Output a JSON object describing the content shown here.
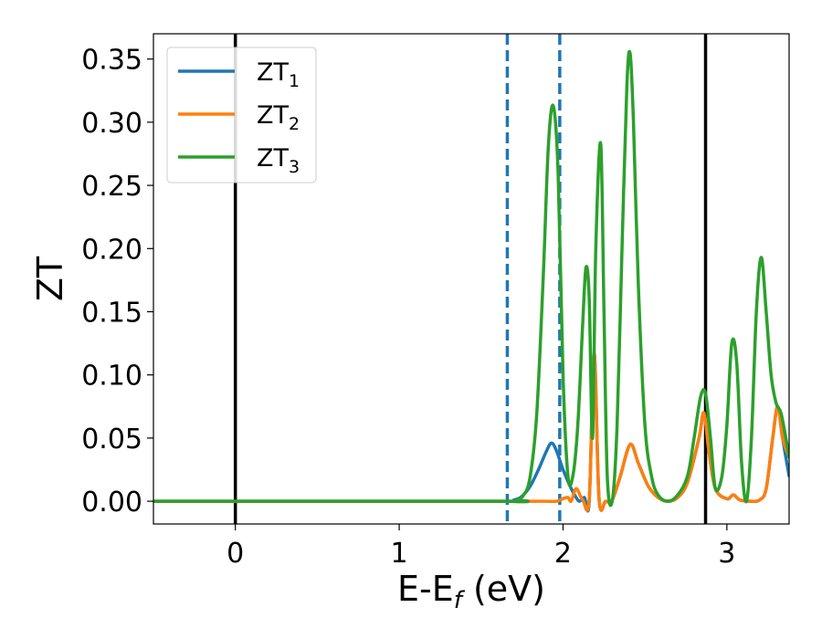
{
  "chart_data": {
    "type": "line",
    "xlabel": "E-E",
    "xlabel_sub": "f",
    "xlabel_unit": " (eV)",
    "ylabel": "ZT",
    "xlim": [
      -0.5,
      3.38
    ],
    "ylim": [
      -0.018,
      0.37
    ],
    "x_ticks": [
      {
        "value": 0,
        "label": "0"
      },
      {
        "value": 1,
        "label": "1"
      },
      {
        "value": 2,
        "label": "2"
      },
      {
        "value": 3,
        "label": "3"
      }
    ],
    "y_ticks": [
      {
        "value": 0.0,
        "label": "0.00"
      },
      {
        "value": 0.05,
        "label": "0.05"
      },
      {
        "value": 0.1,
        "label": "0.10"
      },
      {
        "value": 0.15,
        "label": "0.15"
      },
      {
        "value": 0.2,
        "label": "0.20"
      },
      {
        "value": 0.25,
        "label": "0.25"
      },
      {
        "value": 0.3,
        "label": "0.30"
      },
      {
        "value": 0.35,
        "label": "0.35"
      }
    ],
    "grid": false,
    "legend_position": "top-left",
    "vertical_lines": [
      {
        "x": 0.0,
        "style": "solid",
        "color": "#000000"
      },
      {
        "x": 1.66,
        "style": "dashed",
        "color": "#1f77b4"
      },
      {
        "x": 1.98,
        "style": "dashed",
        "color": "#1f77b4"
      },
      {
        "x": 2.87,
        "style": "solid",
        "color": "#000000"
      }
    ],
    "series": [
      {
        "name": "ZT",
        "subscript": "1",
        "color": "#1f77b4",
        "x": [
          -0.5,
          1.6,
          1.7,
          1.75,
          1.8,
          1.85,
          1.9,
          1.93,
          1.96,
          2.0,
          2.05,
          2.08,
          2.1,
          2.13,
          2.16,
          2.19,
          2.22,
          2.26,
          2.3,
          2.35,
          2.41,
          2.46,
          2.52,
          2.58,
          2.64,
          2.7,
          2.76,
          2.83,
          2.86,
          2.89,
          2.93,
          3.0,
          3.04,
          3.08,
          3.15,
          3.2,
          3.24,
          3.28,
          3.31,
          3.34,
          3.38
        ],
        "y": [
          0.0,
          0.0,
          0.001,
          0.004,
          0.012,
          0.025,
          0.04,
          0.046,
          0.04,
          0.025,
          0.01,
          0.003,
          0.0,
          0.003,
          0.0,
          0.117,
          0.002,
          0.0,
          0.001,
          0.02,
          0.045,
          0.03,
          0.012,
          0.003,
          0.0,
          0.003,
          0.015,
          0.05,
          0.07,
          0.04,
          0.01,
          0.002,
          0.005,
          0.001,
          0.0,
          0.001,
          0.01,
          0.05,
          0.075,
          0.05,
          0.02
        ]
      },
      {
        "name": "ZT",
        "subscript": "2",
        "color": "#ff7f0e",
        "x": [
          -0.5,
          1.6,
          1.7,
          1.8,
          1.9,
          1.96,
          2.0,
          2.03,
          2.05,
          2.08,
          2.12,
          2.16,
          2.19,
          2.22,
          2.26,
          2.3,
          2.35,
          2.41,
          2.46,
          2.52,
          2.58,
          2.64,
          2.7,
          2.76,
          2.83,
          2.86,
          2.89,
          2.93,
          3.0,
          3.04,
          3.08,
          3.15,
          3.2,
          3.24,
          3.28,
          3.31,
          3.34,
          3.38
        ],
        "y": [
          0.0,
          0.0,
          0.0,
          0.0,
          0.0,
          0.0,
          0.002,
          0.003,
          0.0,
          0.01,
          0.001,
          0.002,
          0.117,
          0.002,
          0.0,
          0.001,
          0.02,
          0.045,
          0.03,
          0.012,
          0.003,
          0.0,
          0.003,
          0.015,
          0.05,
          0.07,
          0.04,
          0.01,
          0.002,
          0.005,
          0.001,
          0.0,
          0.001,
          0.01,
          0.05,
          0.075,
          0.05,
          0.035
        ]
      },
      {
        "name": "ZT",
        "subscript": "3",
        "color": "#2ca02c",
        "x": [
          -0.5,
          1.6,
          1.7,
          1.76,
          1.8,
          1.84,
          1.88,
          1.91,
          1.94,
          1.97,
          2.0,
          2.03,
          2.06,
          2.09,
          2.12,
          2.14,
          2.16,
          2.18,
          2.2,
          2.23,
          2.25,
          2.27,
          2.3,
          2.33,
          2.36,
          2.39,
          2.41,
          2.43,
          2.46,
          2.5,
          2.54,
          2.58,
          2.64,
          2.7,
          2.76,
          2.8,
          2.84,
          2.87,
          2.9,
          2.93,
          2.97,
          3.0,
          3.03,
          3.06,
          3.09,
          3.12,
          3.15,
          3.18,
          3.21,
          3.24,
          3.27,
          3.3,
          3.33,
          3.36,
          3.38
        ],
        "y": [
          0.0,
          0.0,
          0.0,
          0.005,
          0.02,
          0.07,
          0.18,
          0.28,
          0.313,
          0.26,
          0.1,
          0.02,
          0.02,
          0.06,
          0.14,
          0.185,
          0.16,
          0.05,
          0.2,
          0.283,
          0.15,
          0.02,
          0.0,
          0.06,
          0.2,
          0.33,
          0.354,
          0.3,
          0.17,
          0.06,
          0.02,
          0.005,
          0.0,
          0.005,
          0.02,
          0.05,
          0.083,
          0.085,
          0.05,
          0.01,
          0.02,
          0.06,
          0.125,
          0.11,
          0.03,
          0.0,
          0.05,
          0.15,
          0.193,
          0.15,
          0.1,
          0.078,
          0.07,
          0.05,
          0.035
        ]
      }
    ]
  }
}
